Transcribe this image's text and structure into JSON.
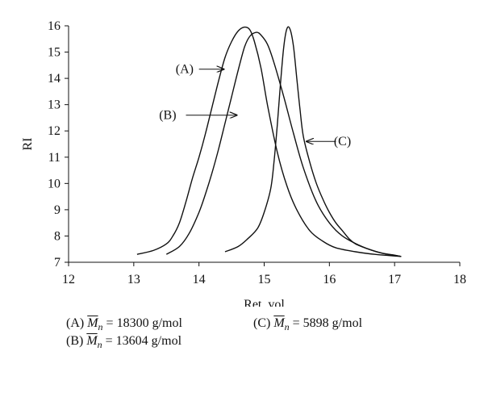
{
  "chart_data": {
    "type": "line",
    "xlabel": "Ret. vol",
    "ylabel": "RI",
    "xlim": [
      12,
      18
    ],
    "ylim": [
      7,
      16
    ],
    "xticks": [
      12,
      13,
      14,
      15,
      16,
      17,
      18
    ],
    "yticks": [
      7,
      8,
      9,
      10,
      11,
      12,
      13,
      14,
      15,
      16
    ],
    "grid": false,
    "series": [
      {
        "id": "A",
        "x": [
          13.05,
          13.3,
          13.5,
          13.6,
          13.7,
          13.8,
          13.9,
          14.0,
          14.1,
          14.2,
          14.3,
          14.4,
          14.5,
          14.6,
          14.7,
          14.78,
          14.85,
          14.95,
          15.05,
          15.2,
          15.35,
          15.5,
          15.7,
          15.9,
          16.1,
          16.4,
          16.7,
          17.1
        ],
        "y": [
          7.3,
          7.45,
          7.7,
          8.0,
          8.5,
          9.3,
          10.2,
          11.0,
          11.9,
          12.9,
          13.9,
          14.8,
          15.4,
          15.8,
          15.95,
          15.85,
          15.4,
          14.4,
          13.0,
          11.2,
          9.9,
          9.0,
          8.2,
          7.8,
          7.55,
          7.4,
          7.3,
          7.22
        ]
      },
      {
        "id": "B",
        "x": [
          13.5,
          13.7,
          13.85,
          14.0,
          14.1,
          14.2,
          14.3,
          14.4,
          14.5,
          14.6,
          14.7,
          14.78,
          14.88,
          14.95,
          15.05,
          15.15,
          15.3,
          15.45,
          15.6,
          15.8,
          16.0,
          16.2,
          16.5,
          16.8,
          17.1
        ],
        "y": [
          7.3,
          7.6,
          8.1,
          8.9,
          9.6,
          10.4,
          11.3,
          12.3,
          13.3,
          14.3,
          15.2,
          15.6,
          15.75,
          15.65,
          15.3,
          14.6,
          13.3,
          11.9,
          10.6,
          9.3,
          8.5,
          8.0,
          7.6,
          7.35,
          7.22
        ]
      },
      {
        "id": "C",
        "x": [
          14.4,
          14.6,
          14.75,
          14.9,
          15.0,
          15.1,
          15.15,
          15.2,
          15.25,
          15.3,
          15.35,
          15.4,
          15.45,
          15.5,
          15.55,
          15.6,
          15.7,
          15.8,
          15.9,
          16.0,
          16.1,
          16.2,
          16.3,
          16.4,
          16.6,
          16.8,
          17.0,
          17.1
        ],
        "y": [
          7.4,
          7.6,
          7.9,
          8.3,
          8.9,
          9.8,
          10.8,
          12.2,
          13.8,
          15.2,
          15.9,
          15.85,
          15.2,
          14.0,
          12.8,
          11.8,
          10.8,
          10.0,
          9.4,
          8.9,
          8.5,
          8.2,
          7.9,
          7.7,
          7.5,
          7.35,
          7.27,
          7.22
        ]
      }
    ],
    "annotations": [
      {
        "label": "(A)",
        "text_x": 13.78,
        "text_y": 14.35,
        "arrow_from": [
          14.0,
          14.35
        ],
        "arrow_to": [
          14.38,
          14.35
        ]
      },
      {
        "label": "(B)",
        "text_x": 13.52,
        "text_y": 12.6,
        "arrow_from": [
          13.8,
          12.6
        ],
        "arrow_to": [
          14.58,
          12.6
        ]
      },
      {
        "label": "(C)",
        "text_x": 16.2,
        "text_y": 11.6,
        "arrow_from": [
          16.1,
          11.6
        ],
        "arrow_to": [
          15.65,
          11.6
        ]
      }
    ]
  },
  "legend": {
    "a_prefix": "(A)",
    "a_value": "= 18300 g/mol",
    "b_prefix": "(B)",
    "b_value": "= 13604 g/mol",
    "c_prefix": "(C)",
    "c_value": "= 5898 g/mol",
    "m_symbol": "M",
    "m_subscript": "n"
  }
}
